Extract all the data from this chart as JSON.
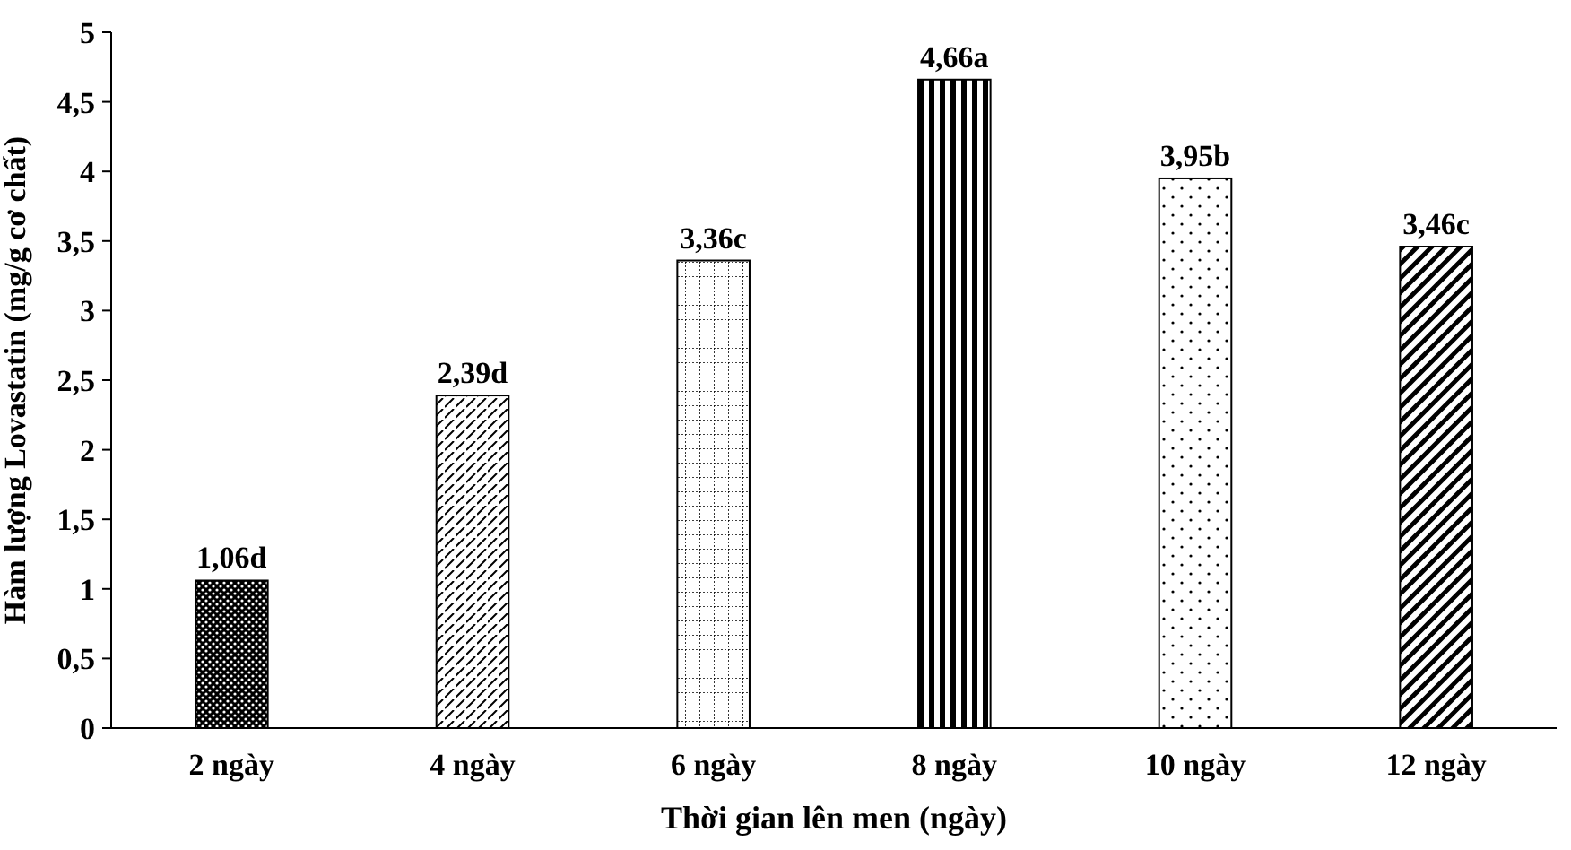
{
  "chart_data": {
    "type": "bar",
    "xlabel": "Thời gian lên men (ngày)",
    "ylabel": "Hàm lượng Lovastatin (mg/g cơ chất)",
    "categories": [
      "2 ngày",
      "4 ngày",
      "6 ngày",
      "8 ngày",
      "10 ngày",
      "12 ngày"
    ],
    "values": [
      1.06,
      2.39,
      3.36,
      4.66,
      3.95,
      3.46
    ],
    "value_labels": [
      "1,06d",
      "2,39d",
      "3,36c",
      "4,66a",
      "3,95b",
      "3,46c"
    ],
    "color": "#000000",
    "ylim": [
      0,
      5
    ],
    "yticks": [
      0,
      {
        "value": 0.5,
        "label": "0,5"
      },
      1,
      {
        "value": 1.5,
        "label": "1,5"
      },
      2,
      {
        "value": 2.5,
        "label": "2,5"
      },
      3,
      {
        "value": 3.5,
        "label": "3,5"
      },
      4,
      {
        "value": 4.5,
        "label": "4,5"
      },
      5
    ],
    "grid": false
  }
}
